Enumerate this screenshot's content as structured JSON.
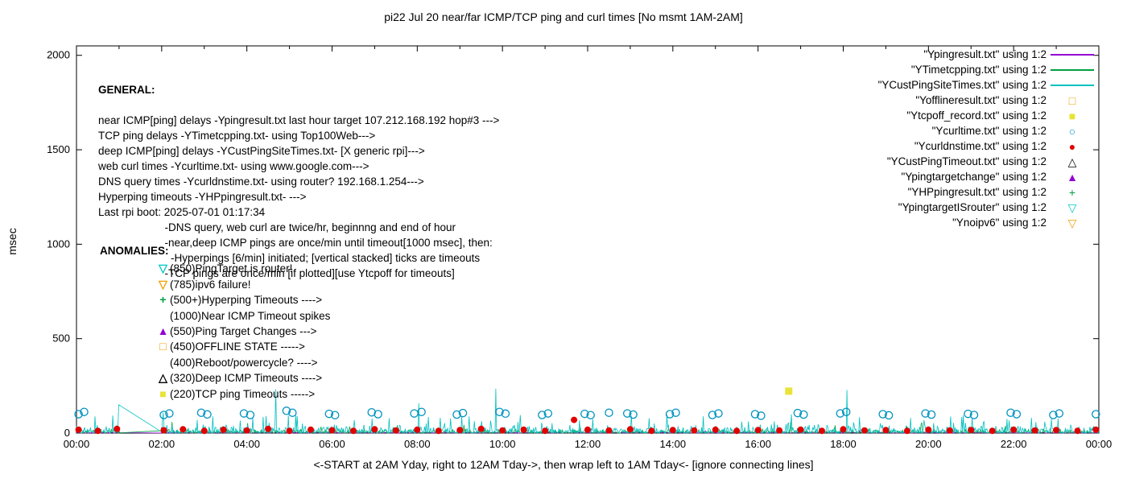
{
  "chart_data": {
    "type": "line+scatter",
    "title": "pi22 Jul 20  near/far ICMP/TCP ping and curl times [No msmt 1AM-2AM]",
    "xlabel": "<-START at 2AM Yday, right to 12AM Tday->, then wrap left to 1AM Tday<- [ignore connecting lines]",
    "ylabel": "msec",
    "xlim": [
      0,
      24
    ],
    "ylim": [
      0,
      2050
    ],
    "grid": false,
    "legend_position": "top-right",
    "yticks": [
      0,
      500,
      1000,
      1500,
      2000
    ],
    "xtick_hours": [
      0,
      2,
      4,
      6,
      8,
      10,
      12,
      14,
      16,
      18,
      20,
      22,
      24
    ],
    "xtick_labels": [
      "00:00",
      "02:00",
      "04:00",
      "06:00",
      "08:00",
      "10:00",
      "12:00",
      "14:00",
      "16:00",
      "18:00",
      "20:00",
      "22:00",
      "00:00"
    ],
    "legend": [
      {
        "label": "\"Ypingresult.txt\" using 1:2",
        "sample": "line",
        "glyph": "",
        "color": "#9400d3",
        "icon": "purple-line"
      },
      {
        "label": "\"YTimetcpping.txt\" using 1:2",
        "sample": "line",
        "glyph": "",
        "color": "#00a040",
        "icon": "green-line"
      },
      {
        "label": "\"YCustPingSiteTimes.txt\" using 1:2",
        "sample": "line",
        "glyph": "",
        "color": "#00c0c0",
        "icon": "teal-line"
      },
      {
        "label": "\"Yofflineresult.txt\" using 1:2",
        "sample": "marker",
        "glyph": "□",
        "color": "#f0a000",
        "icon": "open-square"
      },
      {
        "label": "\"Ytcpoff_record.txt\" using 1:2",
        "sample": "marker",
        "glyph": "■",
        "color": "#e8e337",
        "icon": "filled-square"
      },
      {
        "label": "\"Ycurltime.txt\" using 1:2",
        "sample": "marker",
        "glyph": "○",
        "color": "#0093bf",
        "icon": "open-circle"
      },
      {
        "label": "\"Ycurldnstime.txt\" using 1:2",
        "sample": "marker",
        "glyph": "●",
        "color": "#e00000",
        "icon": "filled-circle"
      },
      {
        "label": "\"YCustPingTimeout.txt\" using 1:2",
        "sample": "marker",
        "glyph": "△",
        "color": "#000000",
        "icon": "open-triangle"
      },
      {
        "label": "\"Ypingtargetchange\" using 1:2",
        "sample": "marker",
        "glyph": "▲",
        "color": "#9400d3",
        "icon": "filled-triangle"
      },
      {
        "label": "\"YHPpingresult.txt\" using 1:2",
        "sample": "marker",
        "glyph": "+",
        "color": "#00a040",
        "icon": "plus"
      },
      {
        "label": "\"YpingtargetISrouter\" using 1:2",
        "sample": "marker",
        "glyph": "▽",
        "color": "#00c8c8",
        "icon": "open-down-triangle"
      },
      {
        "label": "\"Ynoipv6\" using 1:2",
        "sample": "marker",
        "glyph": "▽",
        "color": "#f0a000",
        "icon": "open-down-triangle"
      }
    ],
    "lines": [
      {
        "name": "Ypingresult",
        "color": "#9400d3",
        "seed": 101,
        "n": 1380,
        "base": 7,
        "burst_p": 0.003,
        "burst_max": 18,
        "gap": [
          1.0,
          2.0
        ],
        "spikes": []
      },
      {
        "name": "YTimetcpping",
        "color": "#00a040",
        "seed": 202,
        "n": 1380,
        "base": 24,
        "burst_p": 0.012,
        "burst_max": 60,
        "gap": [
          1.0,
          2.0
        ],
        "spikes": []
      },
      {
        "name": "YCustPingSiteTimes",
        "color": "#00c0c0",
        "seed": 303,
        "n": 1380,
        "base": 50,
        "burst_p": 0.045,
        "burst_max": 100,
        "gap": [
          1.0,
          2.0
        ],
        "spikes": [
          [
            0.99,
            150
          ],
          [
            2.03,
            108
          ],
          [
            4.67,
            232
          ],
          [
            8.03,
            158
          ],
          [
            9.85,
            235
          ],
          [
            13.02,
            92
          ],
          [
            18.08,
            228
          ],
          [
            20.52,
            88
          ]
        ]
      }
    ],
    "markers": [
      {
        "name": "Ycurltime",
        "shape": "circle-open",
        "color": "#0093bf",
        "points": [
          [
            0.05,
            100
          ],
          [
            0.18,
            112
          ],
          [
            2.05,
            96
          ],
          [
            2.18,
            104
          ],
          [
            2.93,
            108
          ],
          [
            3.07,
            99
          ],
          [
            3.93,
            104
          ],
          [
            4.08,
            96
          ],
          [
            4.93,
            118
          ],
          [
            5.07,
            108
          ],
          [
            5.93,
            102
          ],
          [
            6.07,
            95
          ],
          [
            6.93,
            110
          ],
          [
            7.08,
            100
          ],
          [
            7.93,
            104
          ],
          [
            8.1,
            112
          ],
          [
            8.93,
            98
          ],
          [
            9.07,
            106
          ],
          [
            9.93,
            112
          ],
          [
            10.07,
            103
          ],
          [
            10.93,
            96
          ],
          [
            11.07,
            104
          ],
          [
            11.93,
            102
          ],
          [
            12.07,
            95
          ],
          [
            12.5,
            108
          ],
          [
            12.93,
            104
          ],
          [
            13.07,
            98
          ],
          [
            13.93,
            100
          ],
          [
            14.07,
            108
          ],
          [
            14.93,
            96
          ],
          [
            15.07,
            104
          ],
          [
            15.93,
            100
          ],
          [
            16.07,
            92
          ],
          [
            16.93,
            106
          ],
          [
            17.07,
            98
          ],
          [
            17.93,
            104
          ],
          [
            18.07,
            112
          ],
          [
            18.93,
            100
          ],
          [
            19.07,
            94
          ],
          [
            19.93,
            104
          ],
          [
            20.07,
            98
          ],
          [
            20.93,
            102
          ],
          [
            21.07,
            96
          ],
          [
            21.93,
            108
          ],
          [
            22.07,
            100
          ],
          [
            22.93,
            96
          ],
          [
            23.07,
            104
          ],
          [
            23.93,
            100
          ]
        ]
      },
      {
        "name": "Ycurldnstime",
        "shape": "circle-filled",
        "color": "#e00000",
        "points": [
          [
            0.05,
            18
          ],
          [
            0.5,
            12
          ],
          [
            0.95,
            22
          ],
          [
            2.05,
            15
          ],
          [
            2.5,
            20
          ],
          [
            3.0,
            12
          ],
          [
            3.45,
            18
          ],
          [
            4.0,
            14
          ],
          [
            4.5,
            22
          ],
          [
            5.0,
            12
          ],
          [
            5.5,
            18
          ],
          [
            6.0,
            15
          ],
          [
            6.5,
            12
          ],
          [
            7.0,
            20
          ],
          [
            7.5,
            14
          ],
          [
            8.0,
            18
          ],
          [
            8.5,
            12
          ],
          [
            9.0,
            16
          ],
          [
            9.5,
            22
          ],
          [
            10.0,
            14
          ],
          [
            10.5,
            18
          ],
          [
            11.0,
            12
          ],
          [
            11.68,
            70
          ],
          [
            12.0,
            18
          ],
          [
            12.5,
            14
          ],
          [
            13.0,
            20
          ],
          [
            13.5,
            12
          ],
          [
            14.0,
            16
          ],
          [
            14.5,
            14
          ],
          [
            15.0,
            18
          ],
          [
            15.5,
            12
          ],
          [
            16.0,
            16
          ],
          [
            16.5,
            14
          ],
          [
            17.0,
            18
          ],
          [
            17.5,
            12
          ],
          [
            18.0,
            20
          ],
          [
            18.5,
            14
          ],
          [
            19.0,
            16
          ],
          [
            19.5,
            12
          ],
          [
            20.0,
            18
          ],
          [
            20.5,
            14
          ],
          [
            21.0,
            16
          ],
          [
            21.5,
            12
          ],
          [
            22.0,
            18
          ],
          [
            22.5,
            14
          ],
          [
            23.0,
            16
          ],
          [
            23.5,
            12
          ],
          [
            23.93,
            18
          ]
        ]
      },
      {
        "name": "Ytcpoff_record",
        "shape": "square-filled",
        "color": "#e8e337",
        "points": [
          [
            16.72,
            222
          ]
        ]
      }
    ]
  },
  "notes": {
    "general": {
      "header": "GENERAL:",
      "lines": [
        "near ICMP[ping] delays -Ypingresult.txt last hour target 107.212.168.192 hop#3 --->",
        "TCP ping delays -YTimetcpping.txt- using Top100Web--->",
        "deep ICMP[ping] delays -YCustPingSiteTimes.txt- [X generic rpi]--->",
        "web curl times -Ycurltime.txt- using www.google.com--->",
        "DNS query times -Ycurldnstime.txt- using router? 192.168.1.254--->",
        "Hyperping timeouts -YHPpingresult.txt- --->",
        "Last rpi boot: 2025-07-01 01:17:34",
        "                      -DNS query, web curl are twice/hr, beginnng and end of hour",
        "                      -near,deep ICMP pings are once/min until timeout[1000 msec], then:",
        "                        -Hyperpings [6/min] initiated; [vertical stacked] ticks are timeouts",
        "                      -TCP pings are once/min [if plotted][use Ytcpoff for timeouts]"
      ]
    },
    "anomalies": {
      "header": "ANOMALIES:",
      "items": [
        {
          "glyph": "▽",
          "color": "#00c8c8",
          "text": "(850)PingTarget is router!"
        },
        {
          "glyph": "▽",
          "color": "#f0a000",
          "text": "(785)ipv6 failure!"
        },
        {
          "glyph": "+",
          "color": "#00a040",
          "text": "(500+)Hyperping Timeouts ---->"
        },
        {
          "glyph": "",
          "color": "",
          "text": "(1000)Near ICMP Timeout spikes"
        },
        {
          "glyph": "▲",
          "color": "#9400d3",
          "text": "(550)Ping Target Changes --->"
        },
        {
          "glyph": "□",
          "color": "#f0a000",
          "text": "(450)OFFLINE STATE ----->"
        },
        {
          "glyph": "",
          "color": "",
          "text": "(400)Reboot/powercycle? ---->"
        },
        {
          "glyph": "△",
          "color": "#000000",
          "text": "(320)Deep ICMP Timeouts ---->"
        },
        {
          "glyph": "■",
          "color": "#e8e337",
          "text": "(220)TCP ping Timeouts ----->"
        }
      ]
    }
  }
}
